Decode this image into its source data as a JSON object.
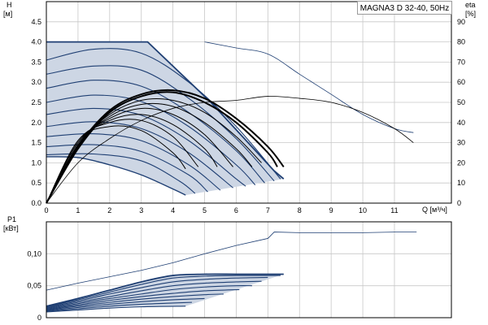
{
  "chart_data": [
    {
      "type": "line",
      "title": "MAGNA3 D 32-40, 50Hz",
      "xlabel": "Q [м³/ч]",
      "ylabel_left": [
        "H",
        "[м]"
      ],
      "ylabel_right": [
        "eta",
        "[%]"
      ],
      "xlim": [
        0,
        12.8
      ],
      "ylim": [
        0,
        5
      ],
      "ylim_right": [
        0,
        100
      ],
      "x_ticks": [
        "0",
        "1",
        "2",
        "3",
        "4",
        "5",
        "6",
        "7",
        "8",
        "9",
        "10",
        "11"
      ],
      "y_ticks": [
        "0.0",
        "0.5",
        "1.0",
        "1.5",
        "2.0",
        "2.5",
        "3.0",
        "3.5",
        "4.0",
        "4.5"
      ],
      "y_right_ticks": [
        "0",
        "10",
        "20",
        "30",
        "40",
        "50",
        "60",
        "70",
        "80",
        "90"
      ],
      "grid": true,
      "colors": {
        "head": "#1f3f73",
        "area": "#cdd6e4",
        "efficiency": "#000000",
        "max": "#1f3f73"
      },
      "max_curve": {
        "x": [
          0,
          3.2,
          5.2,
          7.2,
          7.5
        ],
        "y": [
          4.0,
          4.0,
          2.5,
          0.8,
          0.6
        ]
      },
      "max_curve_ext": {
        "x": [
          5.0,
          6.0,
          7.0,
          8.0,
          9.0,
          10.0,
          11.0,
          11.6
        ],
        "y": [
          4.0,
          3.85,
          3.7,
          3.2,
          2.7,
          2.2,
          1.85,
          1.75
        ]
      },
      "min_curve": {
        "x": [
          0,
          1,
          2,
          3,
          4,
          4.4
        ],
        "y": [
          1.15,
          1.13,
          0.95,
          0.7,
          0.35,
          0.2
        ]
      },
      "head_series": [
        {
          "x": [
            0,
            1.5,
            3.0,
            4.5,
            6.0,
            7.4
          ],
          "y": [
            3.55,
            3.82,
            3.72,
            3.0,
            1.9,
            0.6
          ]
        },
        {
          "x": [
            0,
            1.5,
            3.0,
            4.5,
            6.0,
            7.2
          ],
          "y": [
            3.2,
            3.4,
            3.3,
            2.6,
            1.6,
            0.55
          ]
        },
        {
          "x": [
            0,
            1.5,
            3.0,
            4.5,
            6.0,
            6.9
          ],
          "y": [
            2.85,
            3.05,
            2.9,
            2.25,
            1.3,
            0.5
          ]
        },
        {
          "x": [
            0,
            1.5,
            3.0,
            4.5,
            6.0,
            6.6
          ],
          "y": [
            2.5,
            2.68,
            2.52,
            1.9,
            0.95,
            0.45
          ]
        },
        {
          "x": [
            0,
            1.5,
            3.0,
            4.5,
            6.0,
            6.3
          ],
          "y": [
            2.2,
            2.35,
            2.18,
            1.55,
            0.6,
            0.42
          ]
        },
        {
          "x": [
            0,
            1.5,
            3.0,
            4.5,
            5.9
          ],
          "y": [
            1.9,
            2.02,
            1.85,
            1.25,
            0.38
          ]
        },
        {
          "x": [
            0,
            1.5,
            3.0,
            4.5,
            5.5
          ],
          "y": [
            1.65,
            1.72,
            1.55,
            0.95,
            0.32
          ]
        },
        {
          "x": [
            0,
            1.5,
            3.0,
            4.5,
            5.1
          ],
          "y": [
            1.4,
            1.45,
            1.28,
            0.7,
            0.28
          ]
        },
        {
          "x": [
            0,
            1.5,
            3.0,
            4.2,
            4.7
          ],
          "y": [
            1.2,
            1.22,
            1.05,
            0.55,
            0.24
          ]
        }
      ],
      "efficiency_series": [
        {
          "x": [
            0,
            1,
            2,
            3,
            4,
            5,
            6,
            7,
            7.5
          ],
          "y": [
            0,
            28,
            46,
            54,
            56,
            52,
            42,
            28,
            18
          ]
        },
        {
          "x": [
            0,
            1,
            2,
            3,
            4,
            5,
            6,
            7,
            7.3
          ],
          "y": [
            0,
            27,
            45,
            53,
            55,
            50,
            40,
            25,
            18
          ]
        },
        {
          "x": [
            0,
            1,
            2,
            3,
            4,
            5,
            6,
            6.8
          ],
          "y": [
            0,
            29,
            44,
            51,
            51,
            45,
            33,
            20
          ]
        },
        {
          "x": [
            0,
            1,
            2,
            3,
            4,
            5,
            6,
            6.5
          ],
          "y": [
            0,
            29,
            43,
            49,
            48,
            40,
            27,
            18
          ]
        },
        {
          "x": [
            0,
            1,
            2,
            3,
            4,
            5,
            5.9
          ],
          "y": [
            0,
            30,
            42,
            47,
            44,
            34,
            18
          ]
        },
        {
          "x": [
            0,
            1,
            2,
            3,
            4,
            5,
            5.4
          ],
          "y": [
            0,
            30,
            41,
            44,
            39,
            27,
            18
          ]
        },
        {
          "x": [
            0,
            1,
            2,
            3,
            4,
            4.8
          ],
          "y": [
            0,
            31,
            40,
            41,
            33,
            18
          ]
        },
        {
          "x": [
            0,
            1,
            2,
            3,
            4,
            4.4
          ],
          "y": [
            0,
            31,
            38,
            36,
            25,
            17
          ]
        }
      ],
      "efficiency_max": {
        "x": [
          0,
          1,
          2,
          3,
          4,
          5,
          6,
          7,
          8,
          9,
          10,
          11,
          11.6
        ],
        "y": [
          0,
          20,
          32,
          41,
          47,
          50,
          51,
          53,
          52,
          50,
          45,
          37,
          30
        ]
      }
    },
    {
      "type": "line",
      "ylabel": [
        "P1",
        "[кВт]"
      ],
      "xlim": [
        0,
        12.8
      ],
      "ylim": [
        0,
        0.15
      ],
      "y_ticks": [
        "0",
        "0,05",
        "0,10"
      ],
      "grid": true,
      "max_curve": {
        "x": [
          0,
          1,
          2,
          3,
          4,
          5,
          6,
          7,
          7.2,
          8,
          9,
          10,
          11,
          11.7
        ],
        "y": [
          0.043,
          0.054,
          0.064,
          0.074,
          0.086,
          0.1,
          0.113,
          0.124,
          0.134,
          0.133,
          0.133,
          0.133,
          0.134,
          0.134
        ]
      },
      "power_series": [
        {
          "x": [
            0,
            1,
            2,
            3,
            4,
            5,
            6,
            7,
            7.5
          ],
          "y": [
            0.018,
            0.03,
            0.043,
            0.056,
            0.066,
            0.068,
            0.068,
            0.068,
            0.068
          ]
        },
        {
          "x": [
            0,
            1,
            2,
            3,
            4,
            5,
            6,
            7,
            7.4
          ],
          "y": [
            0.017,
            0.028,
            0.04,
            0.052,
            0.062,
            0.065,
            0.066,
            0.066,
            0.066
          ]
        },
        {
          "x": [
            0,
            1,
            2,
            3,
            4,
            5,
            6,
            7.0
          ],
          "y": [
            0.016,
            0.026,
            0.037,
            0.047,
            0.056,
            0.06,
            0.062,
            0.063
          ]
        },
        {
          "x": [
            0,
            1,
            2,
            3,
            4,
            5,
            6,
            6.8
          ],
          "y": [
            0.015,
            0.024,
            0.033,
            0.042,
            0.05,
            0.054,
            0.056,
            0.057
          ]
        },
        {
          "x": [
            0,
            1,
            2,
            3,
            4,
            5,
            6,
            6.5
          ],
          "y": [
            0.014,
            0.022,
            0.03,
            0.037,
            0.044,
            0.048,
            0.05,
            0.05
          ]
        },
        {
          "x": [
            0,
            1,
            2,
            3,
            4,
            5,
            6.1
          ],
          "y": [
            0.013,
            0.02,
            0.027,
            0.033,
            0.038,
            0.042,
            0.044
          ]
        },
        {
          "x": [
            0,
            1,
            2,
            3,
            4,
            5,
            5.6
          ],
          "y": [
            0.012,
            0.018,
            0.024,
            0.029,
            0.033,
            0.036,
            0.037
          ]
        },
        {
          "x": [
            0,
            1,
            2,
            3,
            4,
            5.0
          ],
          "y": [
            0.011,
            0.016,
            0.021,
            0.025,
            0.028,
            0.03
          ]
        },
        {
          "x": [
            0,
            1,
            2,
            3,
            4,
            4.6
          ],
          "y": [
            0.01,
            0.014,
            0.018,
            0.021,
            0.023,
            0.024
          ]
        },
        {
          "x": [
            0,
            1,
            2,
            3,
            4.4
          ],
          "y": [
            0.009,
            0.012,
            0.015,
            0.017,
            0.018
          ]
        }
      ]
    }
  ]
}
